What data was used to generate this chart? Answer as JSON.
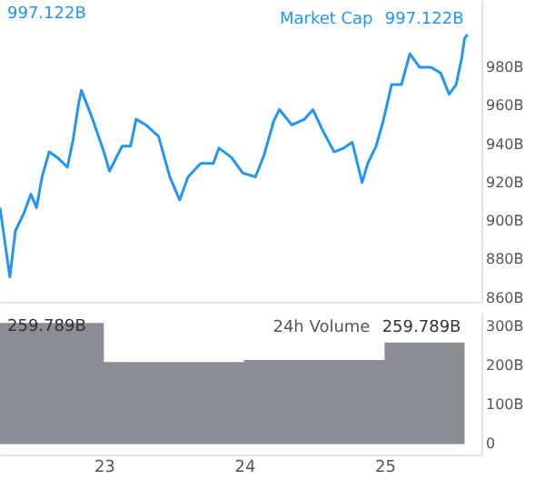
{
  "chart_data": [
    {
      "type": "line",
      "annotations": [
        "997.122B"
      ],
      "xlim": [
        22.26,
        25.69
      ],
      "ylim": [
        858,
        1015
      ],
      "yticks": [
        {
          "value": 860,
          "label": "860B"
        },
        {
          "value": 880,
          "label": "880B"
        },
        {
          "value": 900,
          "label": "900B"
        },
        {
          "value": 920,
          "label": "920B"
        },
        {
          "value": 940,
          "label": "940B"
        },
        {
          "value": 960,
          "label": "960B"
        },
        {
          "value": 980,
          "label": "980B"
        }
      ],
      "tick_labels": "y",
      "grid": false,
      "legend": false,
      "series": [
        {
          "name": "Market Cap",
          "color": "#2196f3",
          "x": [
            22.26,
            22.33,
            22.37,
            22.43,
            22.48,
            22.52,
            22.56,
            22.61,
            22.67,
            22.74,
            22.78,
            22.82,
            22.84,
            22.91,
            23.0,
            23.04,
            23.13,
            23.19,
            23.23,
            23.3,
            23.39,
            23.47,
            23.54,
            23.6,
            23.69,
            23.78,
            23.82,
            23.91,
            23.99,
            24.08,
            24.14,
            24.21,
            24.25,
            24.34,
            24.43,
            24.49,
            24.56,
            24.64,
            24.71,
            24.77,
            24.84,
            24.88,
            24.94,
            24.99,
            25.05,
            25.12,
            25.18,
            25.25,
            25.33,
            25.4,
            25.46,
            25.51,
            25.55,
            25.57,
            25.59
          ],
          "values": [
            907,
            871,
            895,
            904,
            914,
            907,
            923,
            936,
            933,
            928,
            942,
            961,
            968,
            955,
            936,
            926,
            939,
            939,
            953,
            950,
            944,
            923,
            911,
            923,
            930,
            930,
            938,
            933,
            925,
            923,
            934,
            952,
            958,
            950,
            953,
            958,
            947,
            936,
            938,
            941,
            920,
            930,
            939,
            952,
            971,
            971,
            987,
            980,
            980,
            977,
            966,
            971,
            985,
            995,
            997.122
          ],
          "value_labels": [
            null,
            null,
            null,
            null,
            null,
            null,
            null,
            null,
            null,
            null,
            null,
            null,
            null,
            null,
            null,
            null,
            null,
            null,
            null,
            null,
            null,
            null,
            null,
            null,
            null,
            null,
            null,
            null,
            null,
            null,
            null,
            null,
            null,
            null,
            null,
            null,
            null,
            null,
            null,
            null,
            null,
            null,
            null,
            null,
            null,
            null,
            null,
            null,
            null,
            null,
            null,
            null,
            null,
            null,
            "997.122B"
          ]
        }
      ]
    },
    {
      "type": "area",
      "annotations": [
        "259.789B"
      ],
      "xlim": [
        22.26,
        25.69
      ],
      "ylim": [
        -27,
        336
      ],
      "xticks": [
        23,
        24,
        25
      ],
      "yticks": [
        0,
        {
          "value": 100,
          "label": "100B"
        },
        {
          "value": 200,
          "label": "200B"
        },
        {
          "value": 300,
          "label": "300B"
        }
      ],
      "grid": false,
      "legend": false,
      "series": [
        {
          "name": "24h Volume",
          "color": "#8a8d93",
          "x": [
            22.26,
            23,
            23,
            24,
            24,
            25,
            25,
            25.57
          ],
          "values": [
            310,
            310,
            210,
            210,
            215,
            215,
            259.789,
            259.789
          ],
          "value_labels": [
            null,
            null,
            null,
            null,
            null,
            null,
            null,
            "259.789B"
          ]
        }
      ]
    }
  ]
}
